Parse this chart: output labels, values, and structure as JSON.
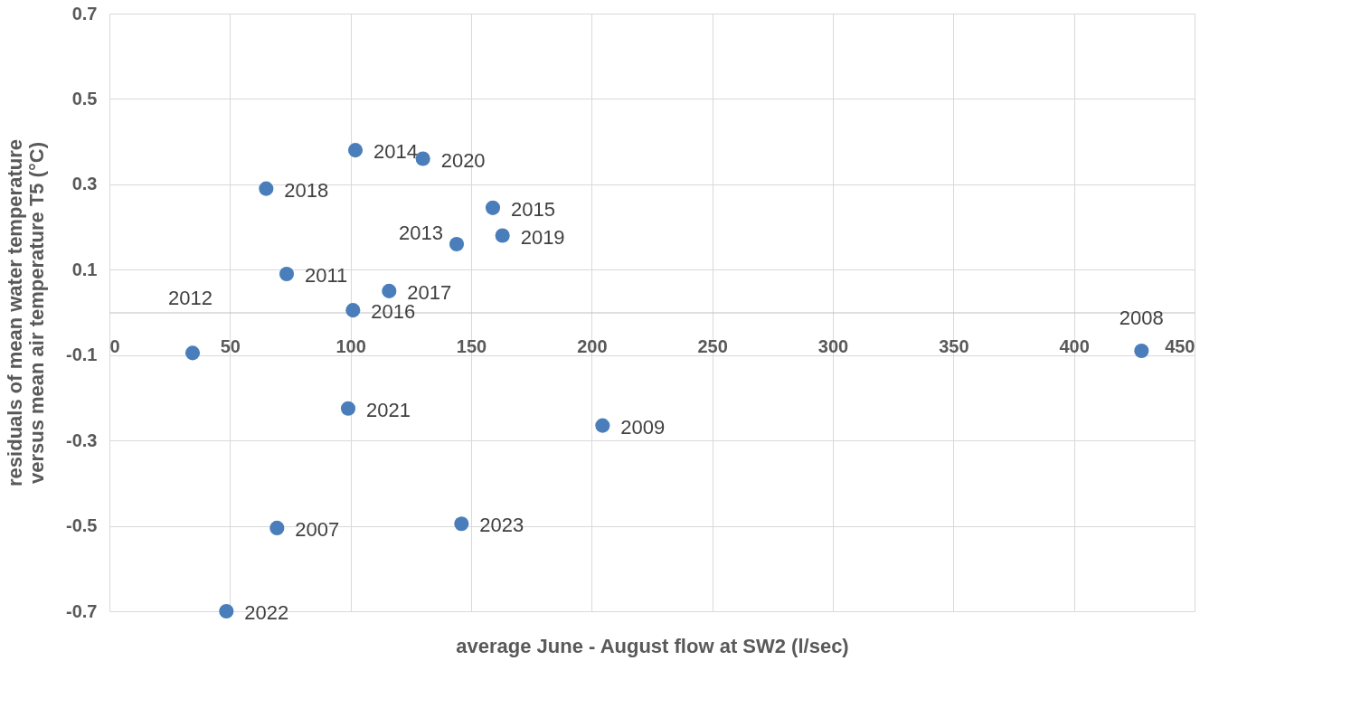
{
  "chart_data": {
    "type": "scatter",
    "xlabel": "average June - August flow at SW2 (l/sec)",
    "ylabel": "residuals of mean water temperature\nversus mean air temperature T5 (°C)",
    "xlim": [
      0,
      450
    ],
    "xticks": [
      0,
      50,
      100,
      150,
      200,
      250,
      300,
      350,
      400,
      450
    ],
    "ylim": [
      -0.7,
      0.7
    ],
    "yticks": [
      -0.7,
      -0.5,
      -0.3,
      -0.1,
      0.1,
      0.3,
      0.5,
      0.7
    ],
    "grid": true,
    "marker": "circle",
    "series": [
      {
        "color": "#4a7ebb",
        "x": [
          102,
          130,
          65,
          159,
          144,
          163,
          73.5,
          116,
          101,
          34.5,
          428,
          99,
          204.5,
          69.5,
          146,
          48.5
        ],
        "values": [
          0.38,
          0.36,
          0.29,
          0.245,
          0.16,
          0.18,
          0.09,
          0.05,
          0.005,
          -0.095,
          -0.09,
          -0.225,
          -0.265,
          -0.505,
          -0.495,
          -0.7
        ]
      }
    ],
    "annotations": [
      {
        "text": "2014",
        "x": 102,
        "y": 0.38
      },
      {
        "text": "2020",
        "x": 130,
        "y": 0.36
      },
      {
        "text": "2018",
        "x": 65,
        "y": 0.29
      },
      {
        "text": "2015",
        "x": 159,
        "y": 0.245
      },
      {
        "text": "2013",
        "x": 144,
        "y": 0.16
      },
      {
        "text": "2019",
        "x": 163,
        "y": 0.18
      },
      {
        "text": "2011",
        "x": 73.5,
        "y": 0.09
      },
      {
        "text": "2017",
        "x": 116,
        "y": 0.05
      },
      {
        "text": "2016",
        "x": 101,
        "y": 0.005
      },
      {
        "text": "2012",
        "x": 34.5,
        "y": -0.095
      },
      {
        "text": "2008",
        "x": 428,
        "y": -0.09
      },
      {
        "text": "2021",
        "x": 99,
        "y": -0.225
      },
      {
        "text": "2009",
        "x": 204.5,
        "y": -0.265
      },
      {
        "text": "2007",
        "x": 69.5,
        "y": -0.505
      },
      {
        "text": "2023",
        "x": 146,
        "y": -0.495
      },
      {
        "text": "2022",
        "x": 48.5,
        "y": -0.7
      }
    ]
  }
}
